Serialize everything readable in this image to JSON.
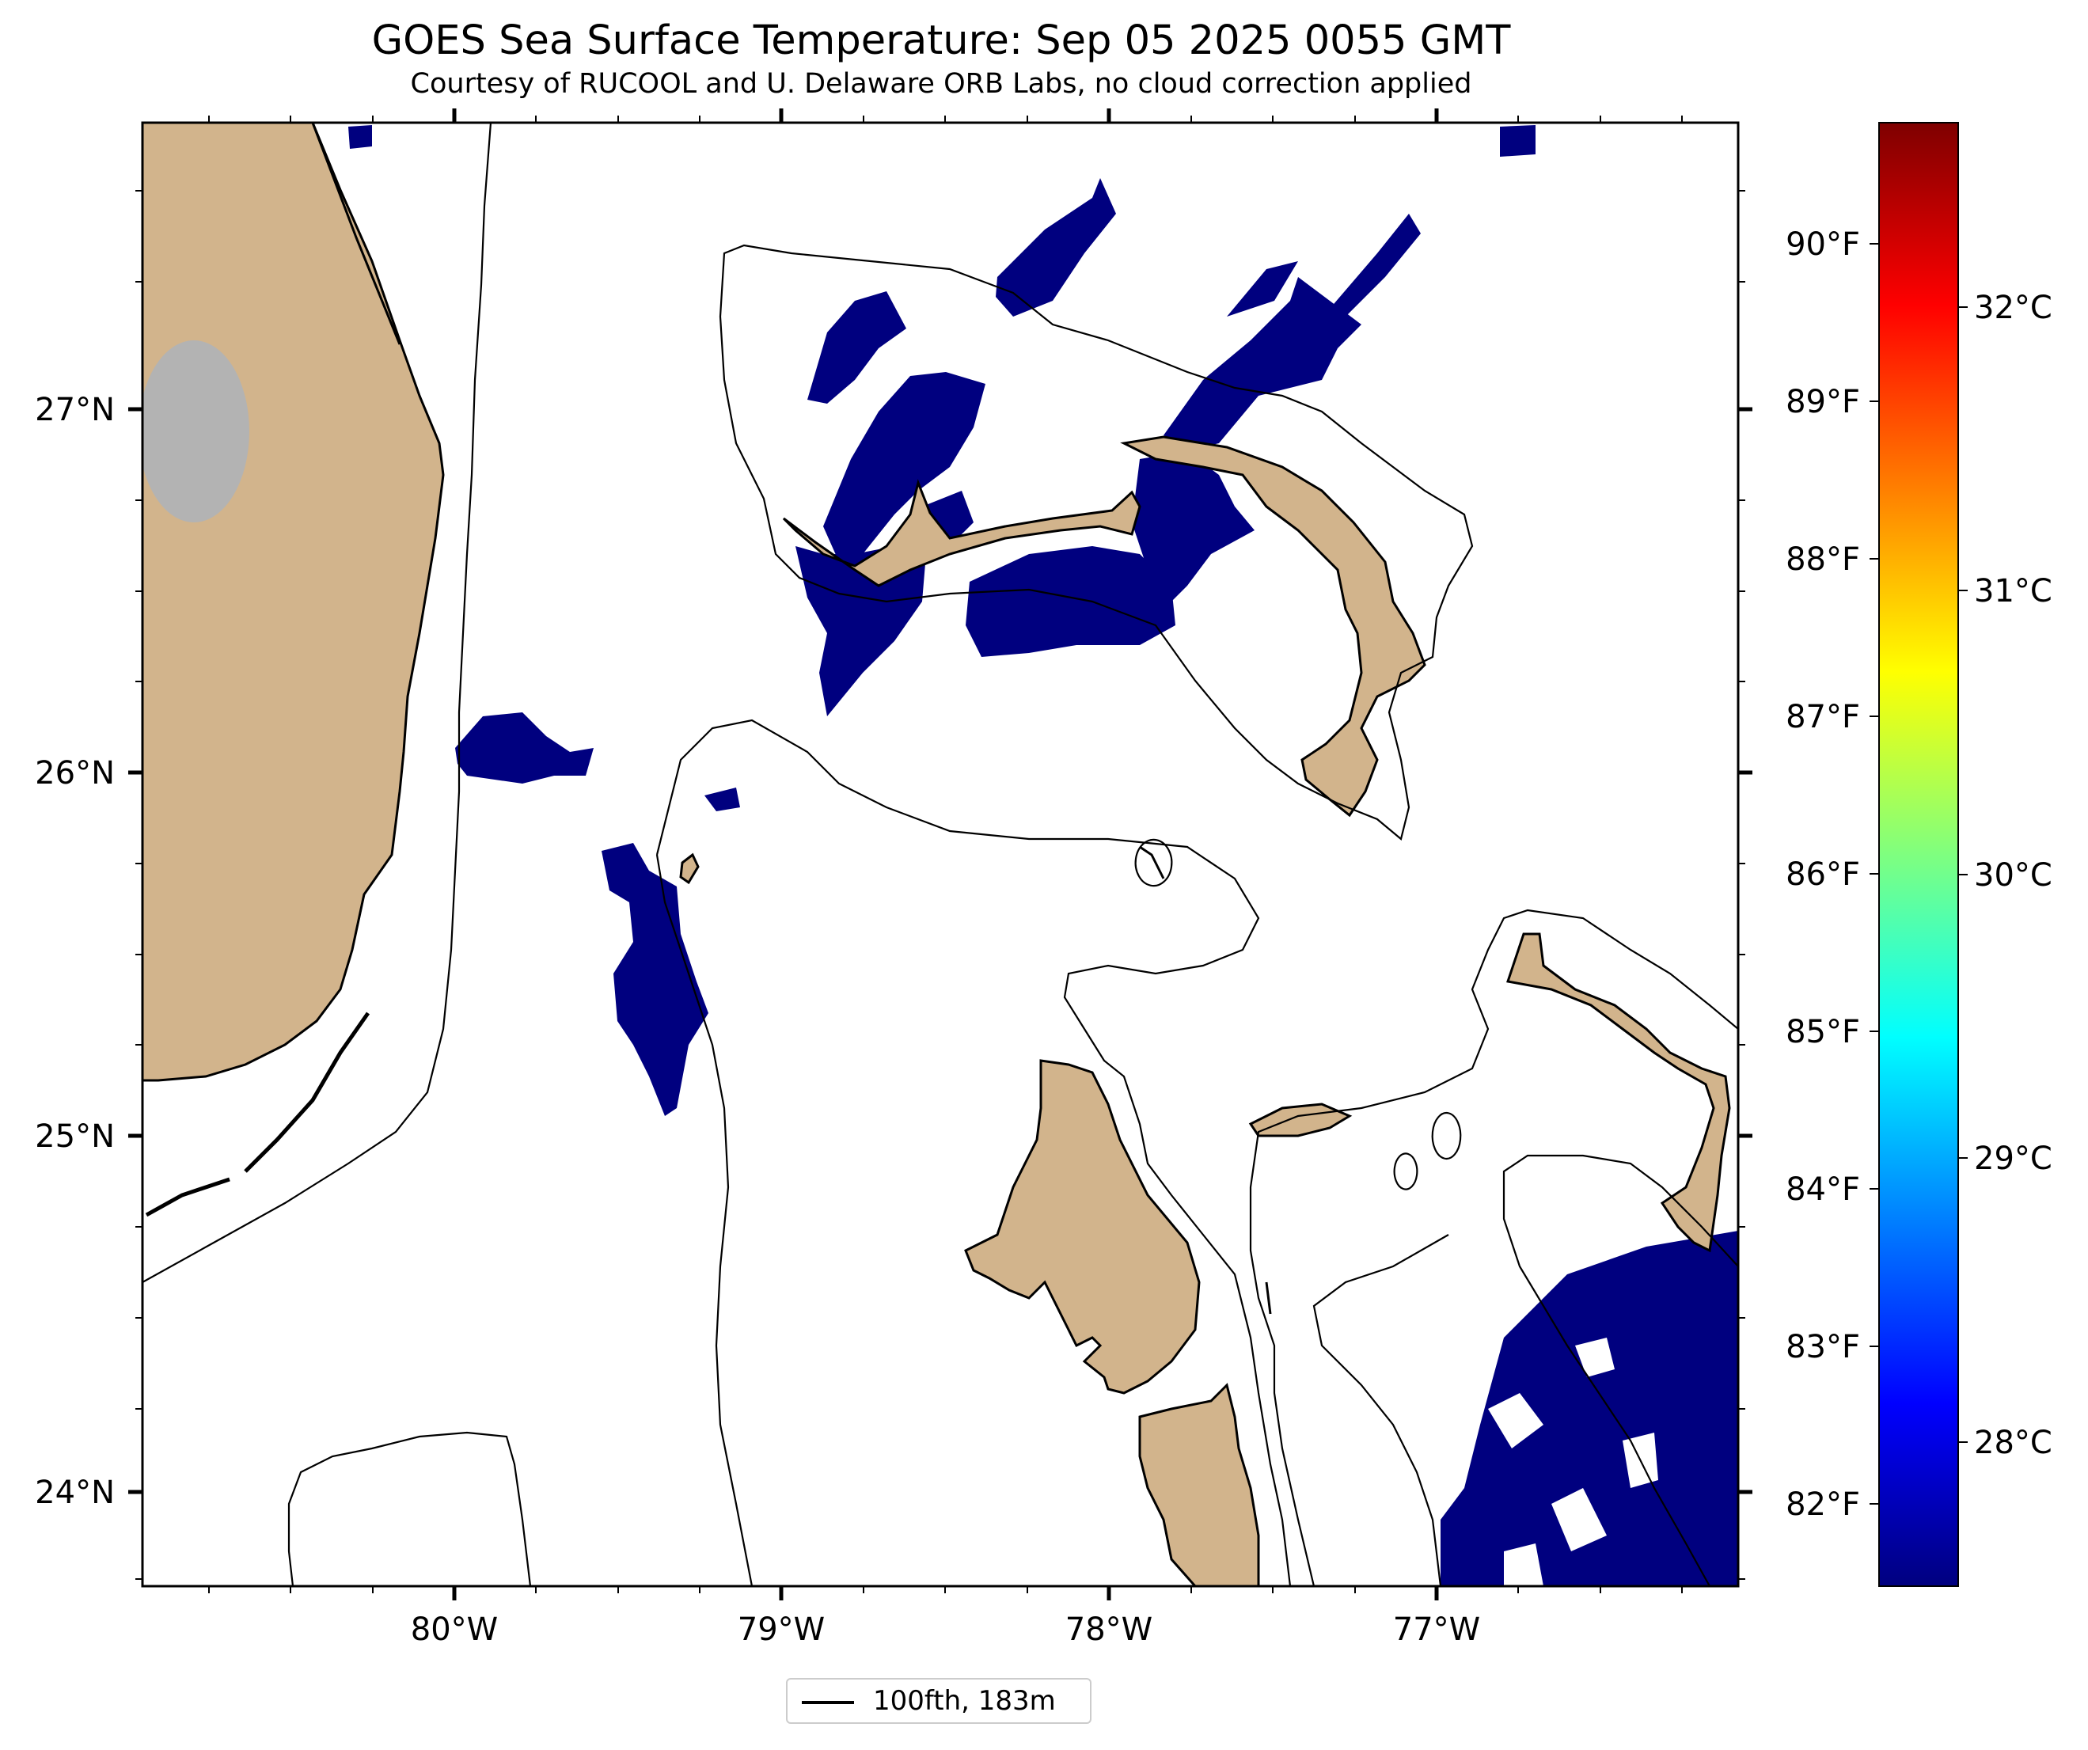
{
  "title": "GOES Sea Surface Temperature: Sep 05 2025 0055 GMT",
  "subtitle": "Courtesy of RUCOOL and U. Delaware ORB Labs, no cloud correction applied",
  "axes": {
    "longitude_labels": [
      "80°W",
      "79°W",
      "78°W",
      "77°W"
    ],
    "latitude_labels": [
      "27°N",
      "26°N",
      "25°N",
      "24°N"
    ]
  },
  "colorbar": {
    "colormap": "jet",
    "fahrenheit_labels": [
      "90°F",
      "89°F",
      "88°F",
      "87°F",
      "86°F",
      "85°F",
      "84°F",
      "83°F",
      "82°F"
    ],
    "celsius_labels": [
      "32°C",
      "31°C",
      "30°C",
      "29°C",
      "28°C"
    ],
    "colors": [
      "#00007f",
      "#0000ff",
      "#007fff",
      "#00ffff",
      "#7fff7f",
      "#ffff00",
      "#ff7f00",
      "#ff0000",
      "#7f0000"
    ]
  },
  "legend": {
    "label": "100fth, 183m"
  },
  "colors": {
    "land": "#d2b48c",
    "lake": "#b3b3b3",
    "sst_min": "#00007f",
    "ocean_no_data": "#ffffff",
    "contour": "#000000"
  }
}
